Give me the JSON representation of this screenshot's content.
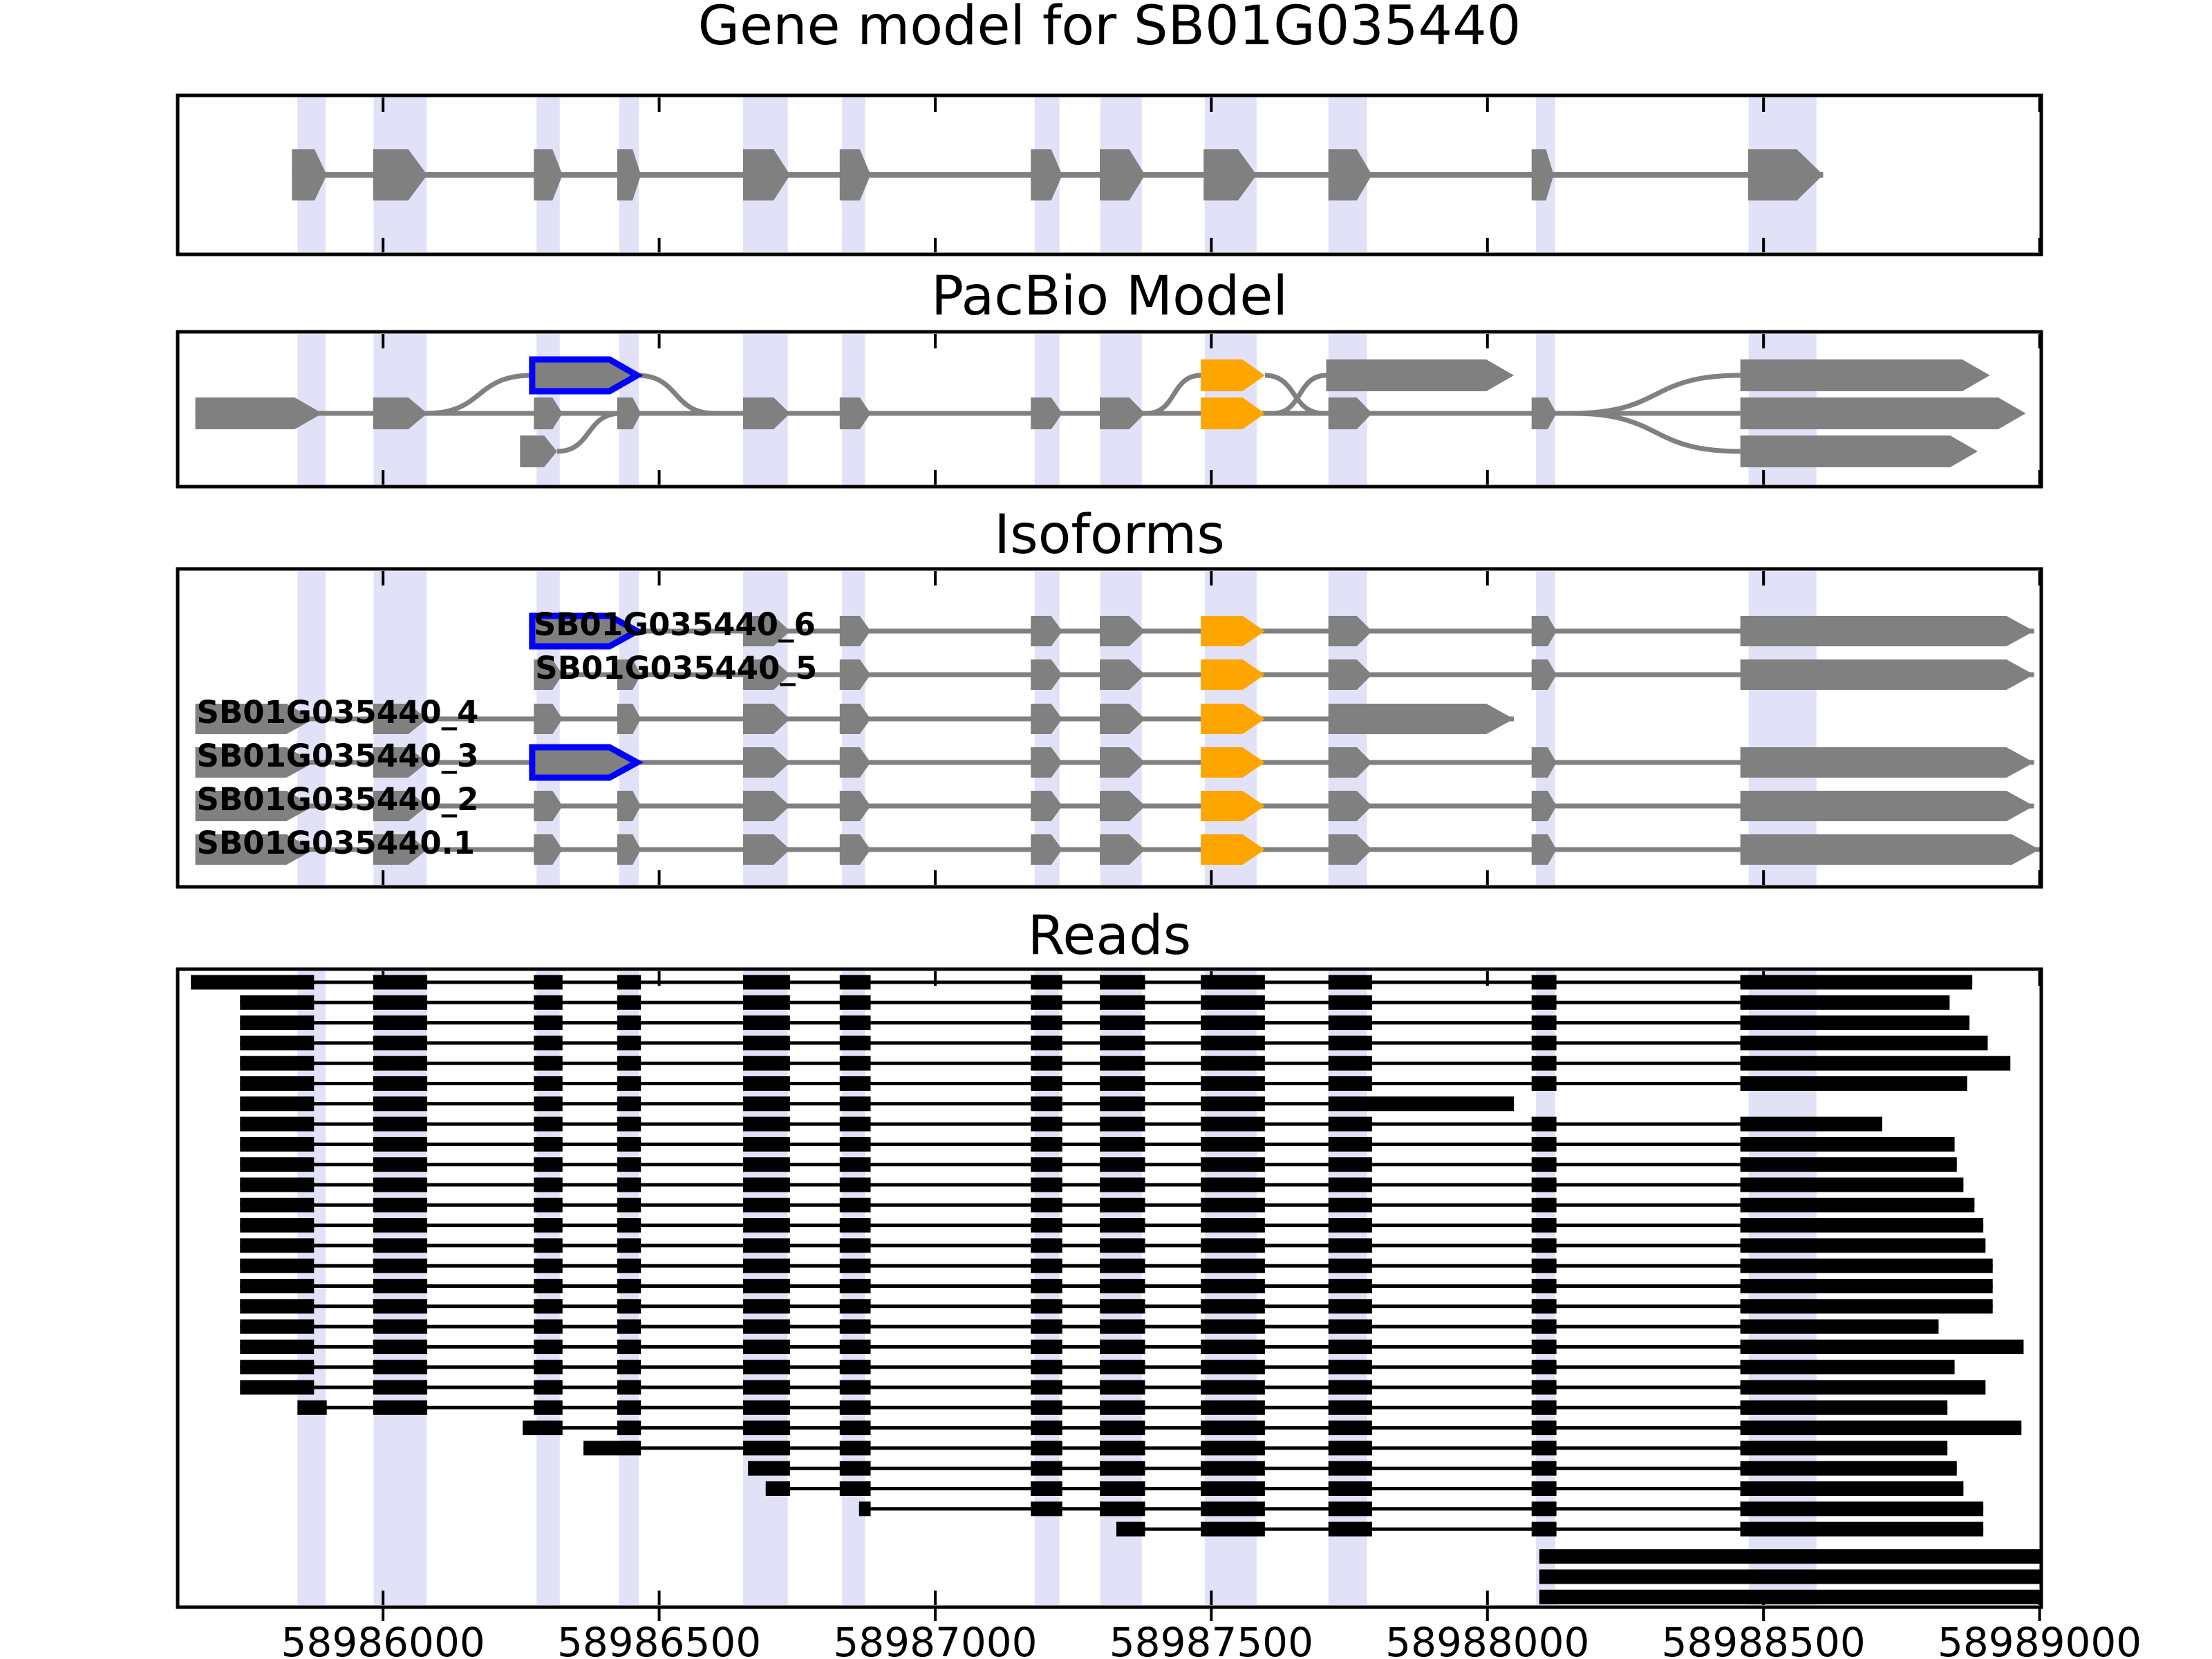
{
  "titles": {
    "panel1": "Gene model for SB01G035440",
    "panel2": "PacBio Model",
    "panel3": "Isoforms",
    "panel4": "Reads"
  },
  "colors": {
    "exon_gray": "#808080",
    "orange": "#FFA500",
    "blue_outline": "#0000FF",
    "read_black": "#000000",
    "stripe": "#E1E1F7",
    "border": "#000000"
  },
  "chart_data": {
    "type": "genome-browser-tracks",
    "x_axis": {
      "range_bp": [
        58985628,
        58989003
      ],
      "ticks": [
        58986000,
        58986500,
        58987000,
        58987500,
        58988000,
        58988500,
        58989000
      ],
      "tick_labels": [
        "58986000",
        "58986500",
        "58987000",
        "58987500",
        "58988000",
        "58988500",
        "58989000"
      ]
    },
    "highlight_regions_bp": [
      [
        58985845,
        58985896
      ],
      [
        58985983,
        58986079
      ],
      [
        58986278,
        58986320
      ],
      [
        58986428,
        58986463
      ],
      [
        58986652,
        58986733
      ],
      [
        58986831,
        58986873
      ],
      [
        58987180,
        58987225
      ],
      [
        58987299,
        58987374
      ],
      [
        58987488,
        58987582
      ],
      [
        58987712,
        58987782
      ],
      [
        58988088,
        58988123
      ],
      [
        58988473,
        58988596
      ]
    ],
    "exons_bp": {
      "e1": [
        58985660,
        58985875
      ],
      "e2": [
        58985982,
        58986080
      ],
      "e3": [
        58986273,
        58986325
      ],
      "e4": [
        58986424,
        58986467
      ],
      "e5": [
        58986652,
        58986737
      ],
      "e6": [
        58986827,
        58986883
      ],
      "e7": [
        58987173,
        58987230
      ],
      "e8": [
        58987298,
        58987380
      ],
      "e9": [
        58987481,
        58987597
      ],
      "e10": [
        58987712,
        58987791
      ],
      "e11": [
        58988080,
        58988125
      ],
      "e12_start": 58988458,
      "g1": [
        58985835,
        58985898
      ],
      "e10_ext_end": 58988048
    },
    "gene_model": {
      "line": [
        58985835,
        58988608
      ],
      "exons": [
        [
          58985835,
          58985898
        ],
        [
          58985982,
          58986080
        ],
        [
          58986273,
          58986325
        ],
        [
          58986424,
          58986467
        ],
        [
          58986652,
          58986737
        ],
        [
          58986827,
          58986883
        ],
        [
          58987173,
          58987230
        ],
        [
          58987298,
          58987380
        ],
        [
          58987486,
          58987582
        ],
        [
          58987712,
          58987791
        ],
        [
          58988080,
          58988120
        ],
        [
          58988472,
          58988608
        ]
      ]
    },
    "pacbio": {
      "main_line": [
        58985660,
        58988458
      ],
      "exons": [
        {
          "x": [
            58985660,
            58985890
          ],
          "row": 0,
          "color": "gray"
        },
        {
          "x": [
            58985982,
            58986080
          ],
          "row": 0,
          "color": "gray"
        },
        {
          "x": [
            58986273,
            58986325
          ],
          "row": 0,
          "color": "gray"
        },
        {
          "x": [
            58986424,
            58986467
          ],
          "row": 0,
          "color": "gray"
        },
        {
          "x": [
            58986652,
            58986737
          ],
          "row": 0,
          "color": "gray"
        },
        {
          "x": [
            58986827,
            58986883
          ],
          "row": 0,
          "color": "gray"
        },
        {
          "x": [
            58987173,
            58987230
          ],
          "row": 0,
          "color": "gray"
        },
        {
          "x": [
            58987298,
            58987380
          ],
          "row": 0,
          "color": "gray"
        },
        {
          "x": [
            58987481,
            58987597
          ],
          "row": 0,
          "color": "orange"
        },
        {
          "x": [
            58987712,
            58987791
          ],
          "row": 0,
          "color": "gray"
        },
        {
          "x": [
            58988080,
            58988125
          ],
          "row": 0,
          "color": "gray"
        },
        {
          "x": [
            58986270,
            58986460
          ],
          "row": -1,
          "color": "gray",
          "outline": "blue"
        },
        {
          "x": [
            58987481,
            58987597
          ],
          "row": -1,
          "color": "orange"
        },
        {
          "x": [
            58987708,
            58988048
          ],
          "row": -1,
          "color": "gray"
        },
        {
          "x": [
            58986248,
            58986315
          ],
          "row": 1,
          "color": "gray"
        },
        {
          "x": [
            58988458,
            58988910
          ],
          "row": -1,
          "color": "gray"
        },
        {
          "x": [
            58988458,
            58988975
          ],
          "row": 0,
          "color": "gray"
        },
        {
          "x": [
            58988458,
            58988888
          ],
          "row": 1,
          "color": "gray"
        }
      ],
      "curves": [
        {
          "from": [
            58986078,
            0
          ],
          "to": [
            58986270,
            -1
          ]
        },
        {
          "from": [
            58986460,
            -1
          ],
          "to": [
            58986600,
            0
          ]
        },
        {
          "from": [
            58986315,
            1
          ],
          "to": [
            58986430,
            0
          ]
        },
        {
          "from": [
            58987383,
            0
          ],
          "to": [
            58987481,
            -1
          ]
        },
        {
          "from": [
            58987597,
            -1
          ],
          "to": [
            58987703,
            0
          ]
        },
        {
          "from": [
            58987612,
            0
          ],
          "to": [
            58987708,
            -1
          ]
        },
        {
          "from": [
            58988152,
            0
          ],
          "to": [
            58988458,
            -1
          ]
        },
        {
          "from": [
            58988152,
            0
          ],
          "to": [
            58988458,
            1
          ]
        }
      ]
    },
    "isoforms": {
      "tracks": [
        {
          "label": "SB01G035440_6",
          "line": [
            58986270,
            58988990
          ],
          "exons": [
            {
              "x": [
                58986270,
                58986460
              ],
              "color": "gray",
              "outline": "blue"
            },
            {
              "x": [
                58986652,
                58986737
              ]
            },
            {
              "x": [
                58986827,
                58986883
              ]
            },
            {
              "x": [
                58987173,
                58987230
              ]
            },
            {
              "x": [
                58987298,
                58987380
              ]
            },
            {
              "x": [
                58987481,
                58987597
              ],
              "color": "orange"
            },
            {
              "x": [
                58987712,
                58987791
              ]
            },
            {
              "x": [
                58988080,
                58988125
              ]
            },
            {
              "x": [
                58988458,
                58988990
              ]
            }
          ]
        },
        {
          "label": "SB01G035440_5",
          "line": [
            58986273,
            58988990
          ],
          "exons": [
            {
              "x": [
                58986273,
                58986325
              ]
            },
            {
              "x": [
                58986424,
                58986467
              ]
            },
            {
              "x": [
                58986652,
                58986737
              ]
            },
            {
              "x": [
                58986827,
                58986883
              ]
            },
            {
              "x": [
                58987173,
                58987230
              ]
            },
            {
              "x": [
                58987298,
                58987380
              ]
            },
            {
              "x": [
                58987481,
                58987597
              ],
              "color": "orange"
            },
            {
              "x": [
                58987712,
                58987791
              ]
            },
            {
              "x": [
                58988080,
                58988125
              ]
            },
            {
              "x": [
                58988458,
                58988990
              ]
            }
          ]
        },
        {
          "label": "SB01G035440_4",
          "line": [
            58985660,
            58988048
          ],
          "exons": [
            {
              "x": [
                58985660,
                58985875
              ]
            },
            {
              "x": [
                58985982,
                58986080
              ]
            },
            {
              "x": [
                58986273,
                58986325
              ]
            },
            {
              "x": [
                58986424,
                58986467
              ]
            },
            {
              "x": [
                58986652,
                58986737
              ]
            },
            {
              "x": [
                58986827,
                58986883
              ]
            },
            {
              "x": [
                58987173,
                58987230
              ]
            },
            {
              "x": [
                58987298,
                58987380
              ]
            },
            {
              "x": [
                58987481,
                58987597
              ],
              "color": "orange"
            },
            {
              "x": [
                58987712,
                58988048
              ]
            }
          ]
        },
        {
          "label": "SB01G035440_3",
          "line": [
            58985660,
            58988990
          ],
          "exons": [
            {
              "x": [
                58985660,
                58985875
              ]
            },
            {
              "x": [
                58985982,
                58986080
              ]
            },
            {
              "x": [
                58986270,
                58986460
              ],
              "color": "gray",
              "outline": "blue"
            },
            {
              "x": [
                58986652,
                58986737
              ]
            },
            {
              "x": [
                58986827,
                58986883
              ]
            },
            {
              "x": [
                58987173,
                58987230
              ]
            },
            {
              "x": [
                58987298,
                58987380
              ]
            },
            {
              "x": [
                58987481,
                58987597
              ],
              "color": "orange"
            },
            {
              "x": [
                58987712,
                58987791
              ]
            },
            {
              "x": [
                58988080,
                58988125
              ]
            },
            {
              "x": [
                58988458,
                58988990
              ]
            }
          ]
        },
        {
          "label": "SB01G035440_2",
          "line": [
            58985660,
            58988990
          ],
          "exons": [
            {
              "x": [
                58985660,
                58985875
              ]
            },
            {
              "x": [
                58985982,
                58986080
              ]
            },
            {
              "x": [
                58986273,
                58986325
              ]
            },
            {
              "x": [
                58986424,
                58986467
              ]
            },
            {
              "x": [
                58986652,
                58986737
              ]
            },
            {
              "x": [
                58986827,
                58986883
              ]
            },
            {
              "x": [
                58987173,
                58987230
              ]
            },
            {
              "x": [
                58987298,
                58987380
              ]
            },
            {
              "x": [
                58987481,
                58987597
              ],
              "color": "orange"
            },
            {
              "x": [
                58987712,
                58987791
              ]
            },
            {
              "x": [
                58988080,
                58988125
              ]
            },
            {
              "x": [
                58988458,
                58988990
              ]
            }
          ]
        },
        {
          "label": "SB01G035440.1",
          "line": [
            58985660,
            58989000
          ],
          "exons": [
            {
              "x": [
                58985660,
                58985875
              ]
            },
            {
              "x": [
                58985982,
                58986080
              ]
            },
            {
              "x": [
                58986273,
                58986325
              ]
            },
            {
              "x": [
                58986424,
                58986467
              ]
            },
            {
              "x": [
                58986652,
                58986737
              ]
            },
            {
              "x": [
                58986827,
                58986883
              ]
            },
            {
              "x": [
                58987173,
                58987230
              ]
            },
            {
              "x": [
                58987298,
                58987380
              ]
            },
            {
              "x": [
                58987481,
                58987597
              ],
              "color": "orange"
            },
            {
              "x": [
                58987712,
                58987791
              ]
            },
            {
              "x": [
                58988080,
                58988125
              ]
            },
            {
              "x": [
                58988458,
                58989000
              ]
            }
          ]
        }
      ]
    },
    "reads": [
      {
        "s": 58985652,
        "e": 58988878,
        "t": "n"
      },
      {
        "s": 58985741,
        "e": 58988837,
        "t": "n"
      },
      {
        "s": 58985741,
        "e": 58988873,
        "t": "n"
      },
      {
        "s": 58985741,
        "e": 58988906,
        "t": "n"
      },
      {
        "s": 58985741,
        "e": 58988947,
        "t": "n"
      },
      {
        "s": 58985741,
        "e": 58988869,
        "t": "n"
      },
      {
        "s": 58985741,
        "e": 58988048,
        "t": "x"
      },
      {
        "s": 58985741,
        "e": 58988715,
        "t": "n"
      },
      {
        "s": 58985741,
        "e": 58988846,
        "t": "n"
      },
      {
        "s": 58985741,
        "e": 58988850,
        "t": "n"
      },
      {
        "s": 58985741,
        "e": 58988862,
        "t": "n"
      },
      {
        "s": 58985741,
        "e": 58988882,
        "t": "n"
      },
      {
        "s": 58985741,
        "e": 58988898,
        "t": "n"
      },
      {
        "s": 58985741,
        "e": 58988902,
        "t": "n"
      },
      {
        "s": 58985741,
        "e": 58988915,
        "t": "n"
      },
      {
        "s": 58985741,
        "e": 58988915,
        "t": "n"
      },
      {
        "s": 58985741,
        "e": 58988915,
        "t": "n"
      },
      {
        "s": 58985741,
        "e": 58988817,
        "t": "n"
      },
      {
        "s": 58985741,
        "e": 58988971,
        "t": "n"
      },
      {
        "s": 58985741,
        "e": 58988846,
        "t": "n"
      },
      {
        "s": 58985741,
        "e": 58988902,
        "t": "n"
      },
      {
        "s": 58985845,
        "e": 58988833,
        "t": "g"
      },
      {
        "s": 58986253,
        "e": 58988967,
        "t": "n"
      },
      {
        "s": 58986363,
        "e": 58988833,
        "t": "n"
      },
      {
        "s": 58986661,
        "e": 58988850,
        "t": "n"
      },
      {
        "s": 58986693,
        "e": 58988862,
        "t": "n"
      },
      {
        "s": 58986862,
        "e": 58988898,
        "t": "n"
      },
      {
        "s": 58987328,
        "e": 58988898,
        "t": "n"
      },
      {
        "s": 58988094,
        "e": 58989003,
        "t": "s"
      },
      {
        "s": 58988094,
        "e": 58989003,
        "t": "s"
      },
      {
        "s": 58988094,
        "e": 58989003,
        "t": "s"
      }
    ]
  }
}
